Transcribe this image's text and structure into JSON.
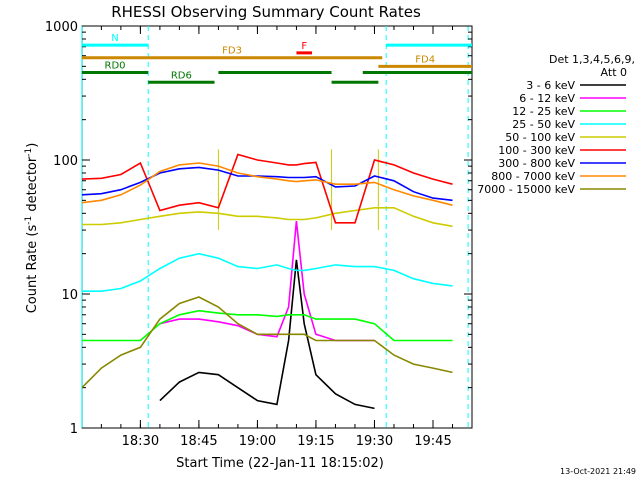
{
  "chart_data": {
    "type": "line",
    "title": "RHESSI Observing Summary Count Rates",
    "xlabel": "Start Time (22-Jan-11 18:15:02)",
    "ylabel_main": "Count Rate (s",
    "ylabel_sup1": "-1",
    "ylabel_mid": " detector",
    "ylabel_sup2": "-1",
    "ylabel_end": ")",
    "yscale": "log",
    "ylim": [
      1,
      1000
    ],
    "xlim": [
      "18:15:02",
      "19:55:00"
    ],
    "y_ticks": [
      "1",
      "10",
      "100",
      "1000"
    ],
    "x_ticks": [
      "18:30",
      "18:45",
      "19:00",
      "19:15",
      "19:30",
      "19:45"
    ],
    "legend_header": [
      "Det 1,3,4,5,6,9,",
      "Att 0"
    ],
    "series": [
      {
        "name": "3 - 6 keV",
        "color": "#000000",
        "x": [
          "18:15",
          "18:20",
          "18:25",
          "18:30",
          "18:35",
          "18:40",
          "18:45",
          "18:50",
          "18:55",
          "19:00",
          "19:05",
          "19:08",
          "19:10",
          "19:12",
          "19:15",
          "19:20",
          "19:25",
          "19:30",
          "19:35",
          "19:40",
          "19:45",
          "19:50"
        ],
        "values": [
          null,
          null,
          null,
          null,
          1.6,
          2.2,
          2.6,
          2.5,
          2.0,
          1.6,
          1.5,
          4.5,
          18.0,
          6.0,
          2.5,
          1.8,
          1.5,
          1.4,
          null,
          null,
          null,
          null
        ]
      },
      {
        "name": "6 - 12 keV",
        "color": "#ff00ff",
        "x": [
          "18:15",
          "18:20",
          "18:25",
          "18:30",
          "18:35",
          "18:40",
          "18:45",
          "18:50",
          "18:55",
          "19:00",
          "19:05",
          "19:08",
          "19:10",
          "19:12",
          "19:15",
          "19:20",
          "19:25",
          "19:30",
          "19:35",
          "19:40",
          "19:45",
          "19:50"
        ],
        "values": [
          null,
          null,
          null,
          null,
          6.0,
          6.5,
          6.5,
          6.2,
          5.8,
          5.0,
          4.8,
          8.0,
          35.0,
          10.0,
          5.0,
          4.5,
          4.5,
          4.5,
          null,
          null,
          null,
          null
        ]
      },
      {
        "name": "12 - 25 keV",
        "color": "#00ff00",
        "x": [
          "18:15",
          "18:20",
          "18:25",
          "18:30",
          "18:35",
          "18:40",
          "18:45",
          "18:50",
          "18:55",
          "19:00",
          "19:05",
          "19:08",
          "19:10",
          "19:12",
          "19:15",
          "19:20",
          "19:25",
          "19:30",
          "19:35",
          "19:40",
          "19:45",
          "19:50"
        ],
        "values": [
          4.5,
          4.5,
          4.5,
          4.5,
          6.0,
          7.0,
          7.5,
          7.2,
          7.0,
          7.0,
          6.8,
          7.0,
          7.0,
          7.0,
          6.5,
          6.5,
          6.5,
          6.0,
          4.5,
          4.5,
          4.5,
          4.5
        ]
      },
      {
        "name": "25 - 50 keV",
        "color": "#00ffff",
        "x": [
          "18:15",
          "18:20",
          "18:25",
          "18:30",
          "18:35",
          "18:40",
          "18:45",
          "18:50",
          "18:55",
          "19:00",
          "19:05",
          "19:08",
          "19:10",
          "19:12",
          "19:15",
          "19:20",
          "19:25",
          "19:30",
          "19:35",
          "19:40",
          "19:45",
          "19:50"
        ],
        "values": [
          10.5,
          10.5,
          11.0,
          12.5,
          15.5,
          18.5,
          20.0,
          18.5,
          16.0,
          15.5,
          16.5,
          15.5,
          15.0,
          15.0,
          15.5,
          16.5,
          16.0,
          16.0,
          15.0,
          13.0,
          12.0,
          11.5
        ]
      },
      {
        "name": "50 - 100 keV",
        "color": "#cccc00",
        "x": [
          "18:15",
          "18:20",
          "18:25",
          "18:30",
          "18:35",
          "18:40",
          "18:45",
          "18:50",
          "18:55",
          "19:00",
          "19:05",
          "19:08",
          "19:10",
          "19:12",
          "19:15",
          "19:20",
          "19:25",
          "19:30",
          "19:35",
          "19:40",
          "19:45",
          "19:50"
        ],
        "values": [
          33,
          33,
          34,
          36,
          38,
          40,
          41,
          40,
          38,
          38,
          37,
          36,
          36,
          36,
          37,
          40,
          42,
          44,
          44,
          38,
          34,
          32
        ]
      },
      {
        "name": "100 - 300 keV",
        "color": "#ff0000",
        "x": [
          "18:15",
          "18:20",
          "18:25",
          "18:30",
          "18:35",
          "18:40",
          "18:45",
          "18:50",
          "18:55",
          "19:00",
          "19:05",
          "19:08",
          "19:10",
          "19:12",
          "19:15",
          "19:20",
          "19:25",
          "19:30",
          "19:35",
          "19:40",
          "19:45",
          "19:50"
        ],
        "values": [
          72,
          73,
          78,
          95,
          42,
          46,
          48,
          44,
          110,
          100,
          95,
          92,
          92,
          94,
          96,
          34,
          34,
          100,
          92,
          80,
          72,
          66
        ]
      },
      {
        "name": "300 - 800 keV",
        "color": "#0000ff",
        "x": [
          "18:15",
          "18:20",
          "18:25",
          "18:30",
          "18:35",
          "18:40",
          "18:45",
          "18:50",
          "18:55",
          "19:00",
          "19:05",
          "19:08",
          "19:10",
          "19:12",
          "19:15",
          "19:20",
          "19:25",
          "19:30",
          "19:35",
          "19:40",
          "19:45",
          "19:50"
        ],
        "values": [
          55,
          56,
          60,
          68,
          80,
          86,
          88,
          84,
          76,
          76,
          75,
          74,
          74,
          74,
          75,
          63,
          64,
          76,
          70,
          58,
          52,
          50
        ]
      },
      {
        "name": "800 - 7000 keV",
        "color": "#ff8800",
        "x": [
          "18:15",
          "18:20",
          "18:25",
          "18:30",
          "18:35",
          "18:40",
          "18:45",
          "18:50",
          "18:55",
          "19:00",
          "19:05",
          "19:08",
          "19:10",
          "19:12",
          "19:15",
          "19:20",
          "19:25",
          "19:30",
          "19:35",
          "19:40",
          "19:45",
          "19:50"
        ],
        "values": [
          48,
          50,
          55,
          65,
          82,
          92,
          95,
          90,
          80,
          75,
          72,
          70,
          69,
          70,
          71,
          66,
          66,
          68,
          60,
          54,
          50,
          46
        ]
      },
      {
        "name": "7000 - 15000 keV",
        "color": "#888800",
        "x": [
          "18:15",
          "18:20",
          "18:25",
          "18:30",
          "18:35",
          "18:40",
          "18:45",
          "18:50",
          "18:55",
          "19:00",
          "19:05",
          "19:08",
          "19:10",
          "19:12",
          "19:15",
          "19:20",
          "19:25",
          "19:30",
          "19:35",
          "19:40",
          "19:45",
          "19:50"
        ],
        "values": [
          2.0,
          2.8,
          3.5,
          4.0,
          6.5,
          8.5,
          9.5,
          8.0,
          6.0,
          5.0,
          5.0,
          5.0,
          5.0,
          5.0,
          4.5,
          4.5,
          4.5,
          4.5,
          3.5,
          3.0,
          2.8,
          2.6
        ]
      }
    ],
    "flag_bars": [
      {
        "label": "N",
        "color": "#00ffff",
        "level": 720,
        "segments": [
          [
            "18:15",
            "18:32"
          ],
          [
            "19:33",
            "19:55"
          ]
        ]
      },
      {
        "label": "F",
        "color": "#ff0000",
        "level": 630,
        "segments": [
          [
            "19:10",
            "19:14"
          ]
        ]
      },
      {
        "label": "FD3",
        "color": "#cc8800",
        "level": 580,
        "segments": [
          [
            "18:15",
            "19:32"
          ]
        ]
      },
      {
        "label": "FD4",
        "color": "#cc8800",
        "level": 500,
        "segments": [
          [
            "19:31",
            "19:55"
          ]
        ]
      },
      {
        "label": "RD0",
        "color": "#007700",
        "level": 450,
        "segments": [
          [
            "18:15",
            "18:32"
          ],
          [
            "18:50",
            "19:19"
          ],
          [
            "19:27",
            "19:55"
          ]
        ]
      },
      {
        "label": "RD6",
        "color": "#007700",
        "level": 380,
        "segments": [
          [
            "18:32",
            "18:49"
          ],
          [
            "19:19",
            "19:31"
          ]
        ]
      }
    ],
    "saa_boundaries": [
      "18:15",
      "18:32",
      "19:33",
      "19:54"
    ],
    "attenuator_boundaries": [
      "18:50",
      "19:19",
      "19:31"
    ]
  },
  "footer": {
    "timestamp": "13-Oct-2021 21:49"
  }
}
